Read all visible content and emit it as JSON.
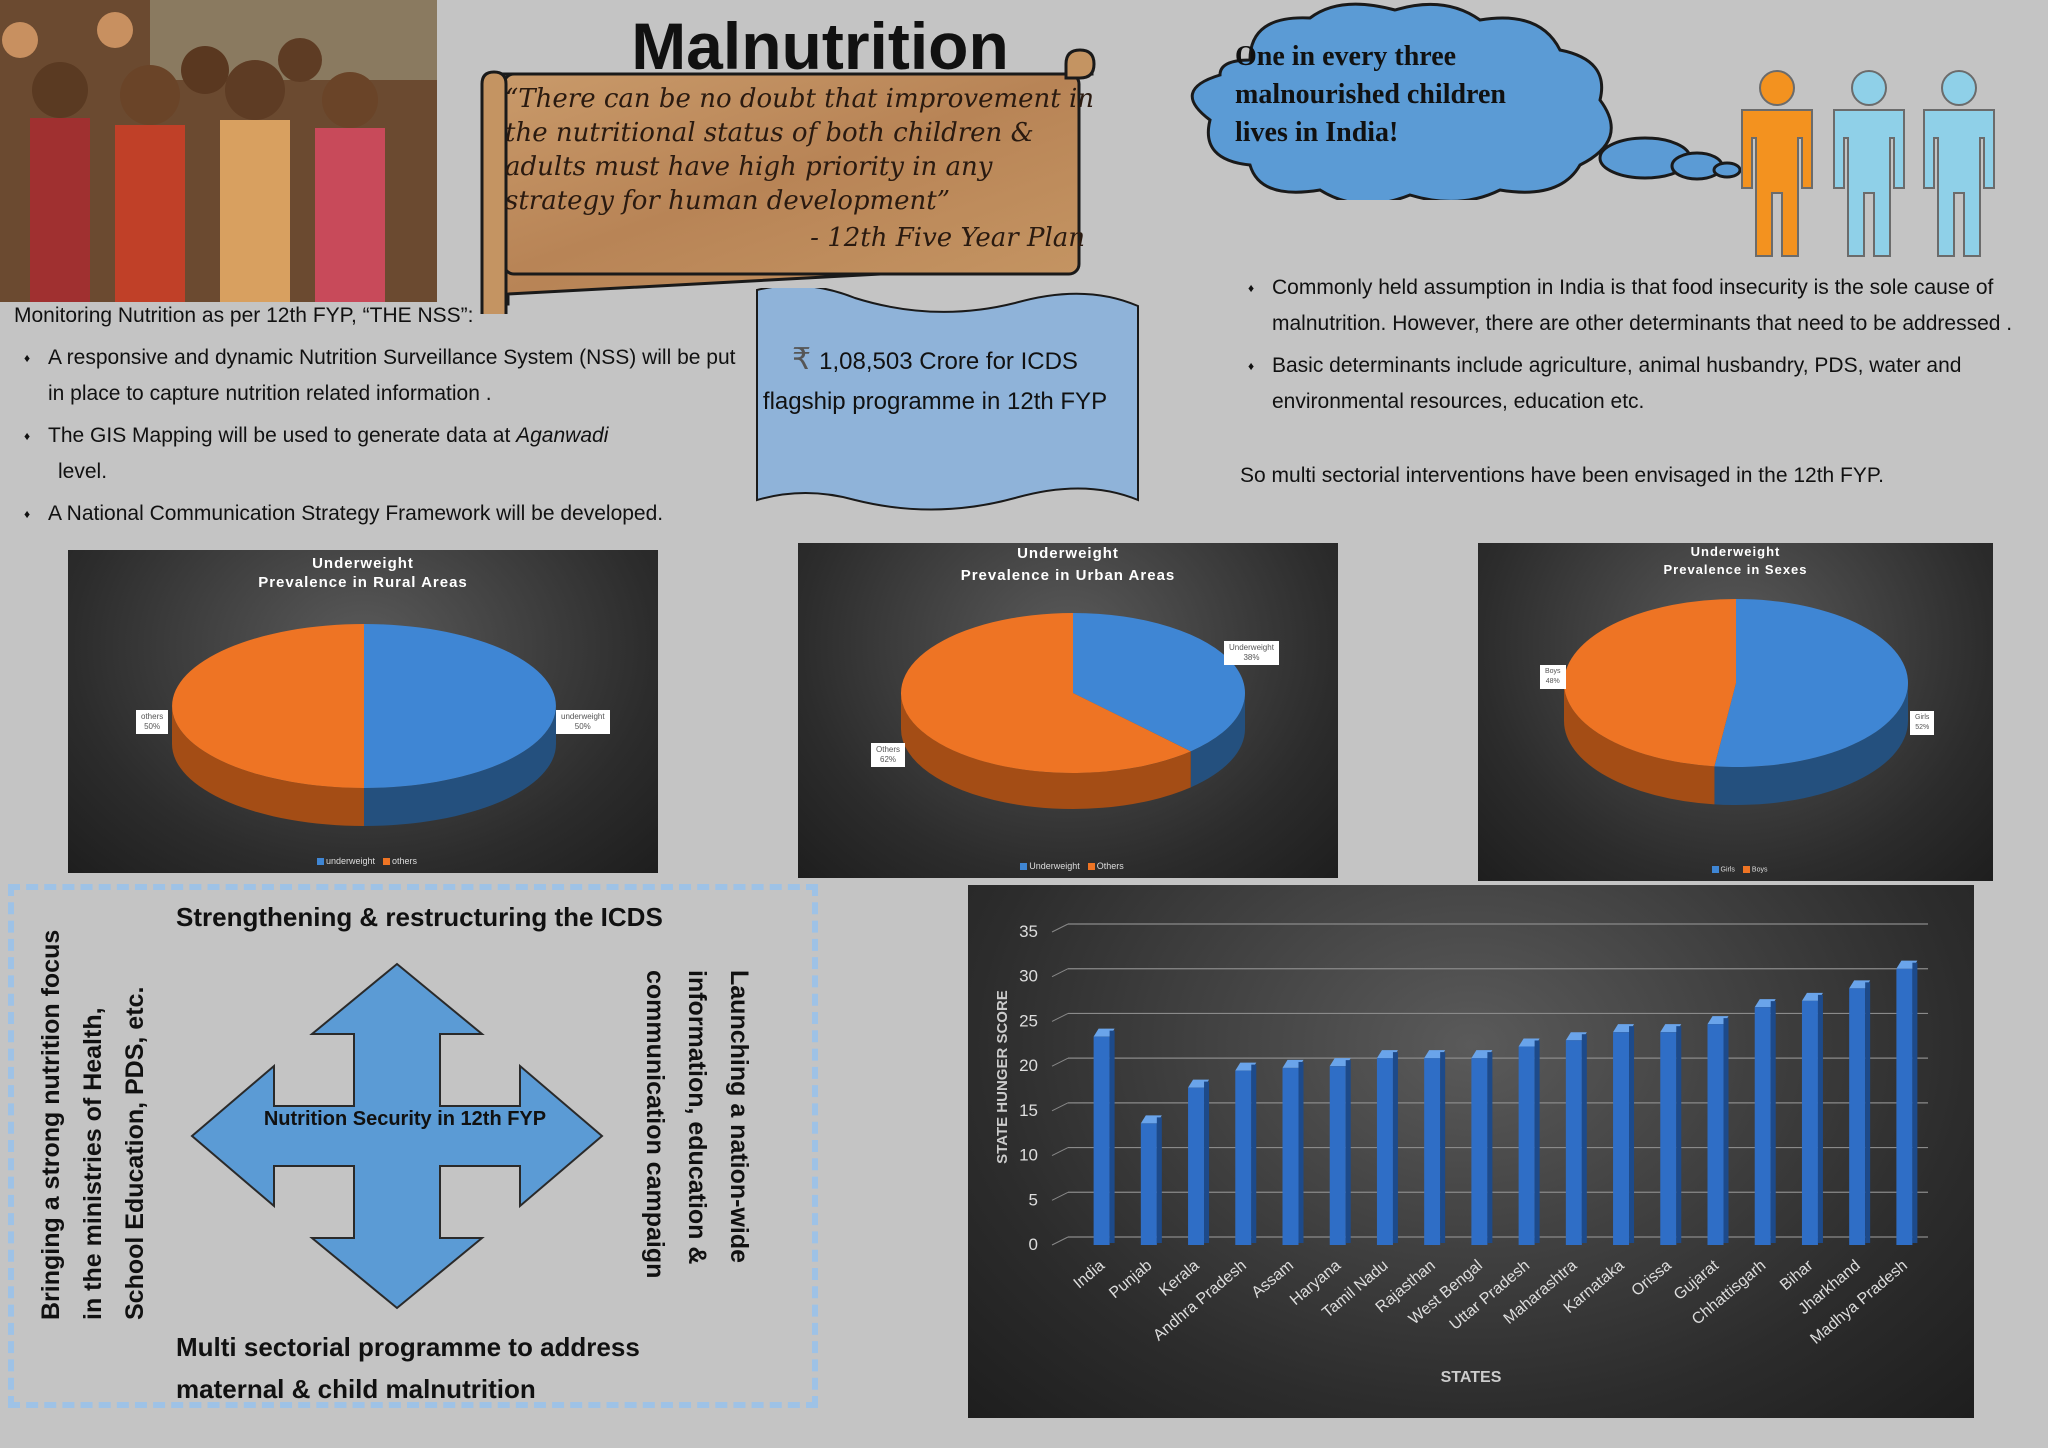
{
  "page": {
    "title": "Malnutrition"
  },
  "photo": {
    "alt": "photo"
  },
  "quote": {
    "lines": [
      "“There can be no doubt that improvement in",
      "the nutritional status of both children &",
      "adults must have  high  priority  in any",
      "strategy for human  development”"
    ],
    "source": "- 12th Five Year Plan"
  },
  "cloud": {
    "lines": [
      "One in every three",
      "malnourished children",
      "lives in India!"
    ]
  },
  "colors": {
    "orange": "#f3921f",
    "light_blue": "#8fd0e8",
    "bar_blue": "#2f6ec6",
    "pie_blue": "#3f86d4",
    "pie_orange": "#ee7424"
  },
  "nss": {
    "heading": "Monitoring Nutrition as per 12th FYP,  “THE NSS”:",
    "items": [
      "A responsive and dynamic Nutrition Surveillance System (NSS) will be put in place to capture nutrition related information .",
      "The GIS Mapping will be used to generate data at ",
      "level.",
      "A National Communication Strategy Framework will be developed."
    ],
    "italic_word": "Aganwadi"
  },
  "banner": {
    "icon": "rupee-icon",
    "symbol": "₹",
    "line1": "1,08,503 Crore for ICDS",
    "line2": "flagship programme in 12th FYP"
  },
  "determinants": {
    "items": [
      "Commonly held assumption in India is that food insecurity is the sole cause of malnutrition. However, there are other determinants that need to be addressed .",
      "Basic determinants include agriculture,  animal  husbandry, PDS,  water and environmental resources, education etc."
    ],
    "note": "So multi sectorial  interventions have been envisaged in the 12th FYP."
  },
  "strategy": {
    "center": "Nutrition Security in 12th FYP",
    "top": "Strengthening & restructuring the ICDS",
    "bottom_line1": "Multi sectorial programme to address",
    "bottom_line2": "maternal & child malnutrition",
    "left_line1": "Bringing a strong nutrition focus",
    "left_line2": "in the ministries of Health,",
    "left_line3": "School Education, PDS, etc.",
    "right_line1": "Launching a nation-wide",
    "right_line2": "information, education &",
    "right_line3": "communication campaign"
  },
  "chart_data": [
    {
      "type": "pie",
      "title_line1": "Underweight",
      "title_line2": "Prevalence  in Rural Areas",
      "slices": [
        {
          "name": "underweight",
          "value": 50,
          "label": "underweight",
          "pct": "50%"
        },
        {
          "name": "others",
          "value": 50,
          "label": "others",
          "pct": "50%"
        }
      ],
      "legend": [
        "underweight",
        "others"
      ]
    },
    {
      "type": "pie",
      "title_line1": "Underweight",
      "title_line2": "Prevalence  in Urban Areas",
      "slices": [
        {
          "name": "Underweight",
          "value": 38,
          "label": "Underweight",
          "pct": "38%"
        },
        {
          "name": "Others",
          "value": 62,
          "label": "Others",
          "pct": "62%"
        }
      ],
      "legend": [
        "Underweight",
        "Others"
      ]
    },
    {
      "type": "pie",
      "title_line1": "Underweight",
      "title_line2": "Prevalence  in Sexes",
      "slices": [
        {
          "name": "Girls",
          "value": 52,
          "label": "Girls",
          "pct": "52%"
        },
        {
          "name": "Boys",
          "value": 48,
          "label": "Boys",
          "pct": "48%"
        }
      ],
      "legend": [
        "Girls",
        "Boys"
      ]
    },
    {
      "type": "bar",
      "xlabel": "STATES",
      "ylabel": "STATE HUNGER SCORE",
      "ylim": [
        0,
        35
      ],
      "yticks": [
        "0",
        "5",
        "10",
        "15",
        "20",
        "25",
        "30",
        "35"
      ],
      "grid": true,
      "categories": [
        "India",
        "Punjab",
        "Kerala",
        "Andhra Pradesh",
        "Assam",
        "Haryana",
        "Tamil Nadu",
        "Rajasthan",
        "West Bengal",
        "Uttar Pradesh",
        "Maharashtra",
        "Karnataka",
        "Orissa",
        "Gujarat",
        "Chhattisgarh",
        "Bihar",
        "Jharkhand",
        "Madhya Pradesh"
      ],
      "values": [
        23.3,
        13.6,
        17.6,
        19.5,
        19.8,
        20.0,
        20.9,
        20.9,
        20.9,
        22.2,
        22.9,
        23.8,
        23.8,
        24.7,
        26.6,
        27.3,
        28.7,
        30.9
      ]
    }
  ]
}
